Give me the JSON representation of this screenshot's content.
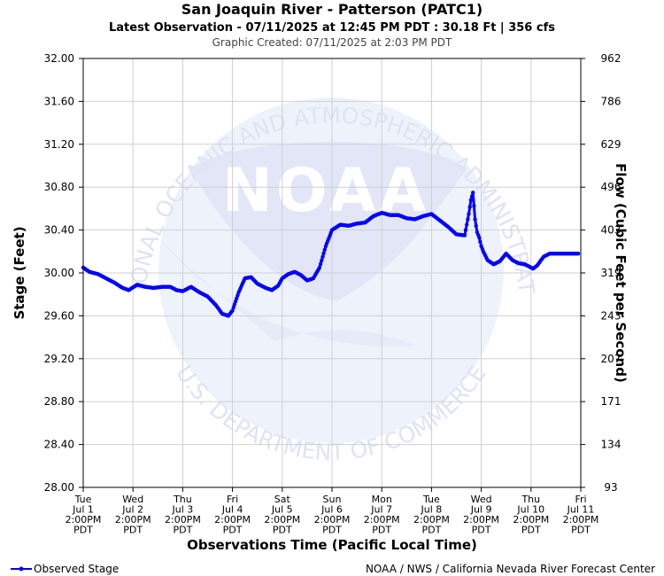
{
  "header": {
    "title": "San Joaquin River - Patterson (PATC1)",
    "latest": "Latest Observation - 07/11/2025 at 12:45 PM PDT : 30.18 Ft | 356 cfs",
    "created": "Graphic Created: 07/11/2025 at 2:03 PM PDT"
  },
  "watermark": {
    "logo": "NOAA",
    "top_arc": "NATIONAL OCEANIC AND ATMOSPHERIC ADMINISTRATION",
    "bottom_arc": "U.S. DEPARTMENT OF COMMERCE"
  },
  "footer": {
    "legend_label": "Observed Stage",
    "credit": "NOAA / NWS / California Nevada River Forecast Center"
  },
  "chart_data": {
    "type": "line",
    "title": "San Joaquin River - Patterson (PATC1)",
    "xlabel": "Observations Time (Pacific Local Time)",
    "ylabel": "Stage (Feet)",
    "y2label": "Flow (Cubic Feet per Second)",
    "ylim": [
      28.0,
      32.0
    ],
    "xlim": [
      "2025-07-01 14:00",
      "2025-07-11 14:00"
    ],
    "grid": true,
    "legend": "bottom-left",
    "series_color": "#0000ff",
    "y_ticks": [
      "28.00",
      "28.40",
      "28.80",
      "29.20",
      "29.60",
      "30.00",
      "30.40",
      "30.80",
      "31.20",
      "31.60",
      "32.00"
    ],
    "y2_ticks": [
      "93",
      "134",
      "171",
      "207",
      "243",
      "319",
      "403",
      "496",
      "629",
      "786",
      "962"
    ],
    "x_ticks": [
      [
        "Tue",
        "Jul 1",
        "2:00PM",
        "PDT"
      ],
      [
        "Wed",
        "Jul 2",
        "2:00PM",
        "PDT"
      ],
      [
        "Thu",
        "Jul 3",
        "2:00PM",
        "PDT"
      ],
      [
        "Fri",
        "Jul 4",
        "2:00PM",
        "PDT"
      ],
      [
        "Sat",
        "Jul 5",
        "2:00PM",
        "PDT"
      ],
      [
        "Sun",
        "Jul 6",
        "2:00PM",
        "PDT"
      ],
      [
        "Mon",
        "Jul 7",
        "2:00PM",
        "PDT"
      ],
      [
        "Tue",
        "Jul 8",
        "2:00PM",
        "PDT"
      ],
      [
        "Wed",
        "Jul 9",
        "2:00PM",
        "PDT"
      ],
      [
        "Thu",
        "Jul 10",
        "2:00PM",
        "PDT"
      ],
      [
        "Fri",
        "Jul 11",
        "2:00PM",
        "PDT"
      ]
    ],
    "series": [
      {
        "name": "Observed Stage",
        "x": [
          "2025-07-01 14:00",
          "2025-07-01 17:00",
          "2025-07-01 21:00",
          "2025-07-02 01:00",
          "2025-07-02 05:00",
          "2025-07-02 09:00",
          "2025-07-02 12:00",
          "2025-07-02 16:00",
          "2025-07-02 20:00",
          "2025-07-03 00:00",
          "2025-07-03 04:00",
          "2025-07-03 08:00",
          "2025-07-03 11:00",
          "2025-07-03 14:00",
          "2025-07-03 18:00",
          "2025-07-03 22:00",
          "2025-07-04 02:00",
          "2025-07-04 06:00",
          "2025-07-04 09:00",
          "2025-07-04 12:00",
          "2025-07-04 14:00",
          "2025-07-04 17:00",
          "2025-07-04 20:00",
          "2025-07-04 23:00",
          "2025-07-05 02:00",
          "2025-07-05 06:00",
          "2025-07-05 09:00",
          "2025-07-05 12:00",
          "2025-07-05 14:00",
          "2025-07-05 17:00",
          "2025-07-05 20:00",
          "2025-07-05 23:00",
          "2025-07-06 02:00",
          "2025-07-06 05:00",
          "2025-07-06 08:00",
          "2025-07-06 11:00",
          "2025-07-06 14:00",
          "2025-07-06 18:00",
          "2025-07-06 22:00",
          "2025-07-07 02:00",
          "2025-07-07 06:00",
          "2025-07-07 10:00",
          "2025-07-07 14:00",
          "2025-07-07 18:00",
          "2025-07-07 22:00",
          "2025-07-08 02:00",
          "2025-07-08 06:00",
          "2025-07-08 10:00",
          "2025-07-08 14:00",
          "2025-07-08 18:00",
          "2025-07-08 22:00",
          "2025-07-09 02:00",
          "2025-07-09 06:00",
          "2025-07-09 08:00",
          "2025-07-09 09:00",
          "2025-07-09 10:00",
          "2025-07-09 11:00",
          "2025-07-09 12:00",
          "2025-07-09 13:00",
          "2025-07-09 14:00",
          "2025-07-09 15:00",
          "2025-07-09 17:00",
          "2025-07-09 20:00",
          "2025-07-09 23:00",
          "2025-07-10 02:00",
          "2025-07-10 05:00",
          "2025-07-10 08:00",
          "2025-07-10 11:00",
          "2025-07-10 13:00",
          "2025-07-10 15:00",
          "2025-07-10 17:00",
          "2025-07-10 20:00",
          "2025-07-10 23:00",
          "2025-07-11 02:00",
          "2025-07-11 05:00",
          "2025-07-11 08:00",
          "2025-07-11 11:00",
          "2025-07-11 12:45"
        ],
        "y": [
          30.05,
          30.01,
          29.99,
          29.95,
          29.91,
          29.86,
          29.84,
          29.89,
          29.87,
          29.86,
          29.87,
          29.87,
          29.84,
          29.83,
          29.87,
          29.82,
          29.78,
          29.7,
          29.62,
          29.6,
          29.65,
          29.82,
          29.95,
          29.96,
          29.9,
          29.86,
          29.84,
          29.88,
          29.95,
          29.99,
          30.01,
          29.98,
          29.93,
          29.95,
          30.05,
          30.25,
          30.4,
          30.45,
          30.44,
          30.46,
          30.47,
          30.53,
          30.56,
          30.54,
          30.54,
          30.51,
          30.5,
          30.53,
          30.55,
          30.49,
          30.43,
          30.36,
          30.35,
          30.55,
          30.68,
          30.75,
          30.5,
          30.38,
          30.33,
          30.25,
          30.2,
          30.12,
          30.08,
          30.11,
          30.18,
          30.12,
          30.09,
          30.08,
          30.06,
          30.04,
          30.07,
          30.15,
          30.18,
          30.18,
          30.18,
          30.18,
          30.18,
          30.18
        ]
      }
    ]
  }
}
